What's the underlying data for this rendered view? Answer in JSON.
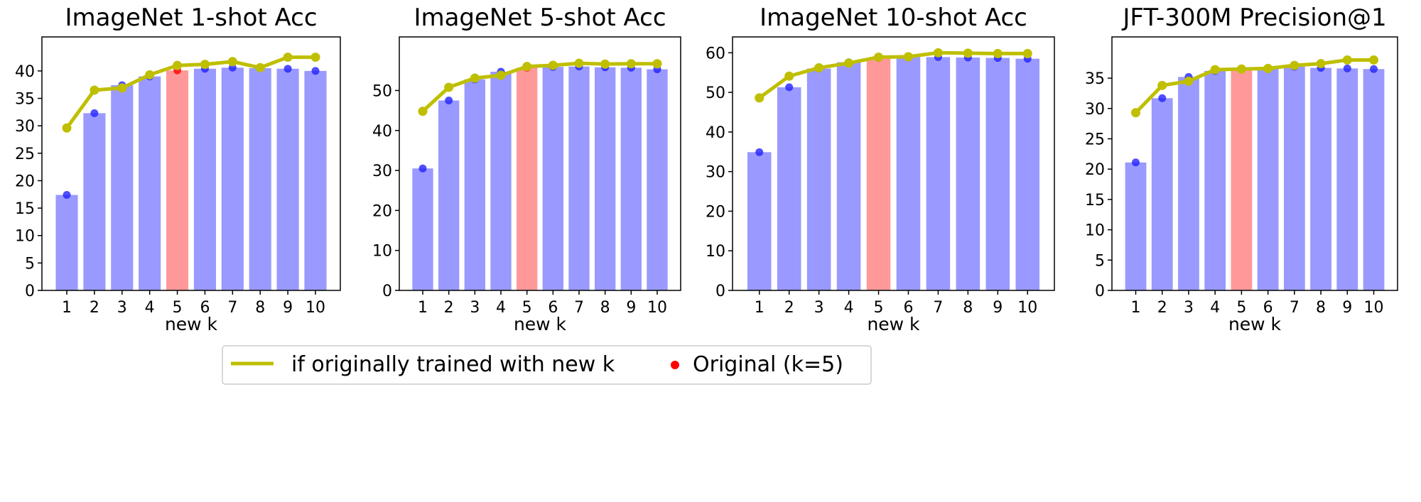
{
  "colors": {
    "bar": "#9999ff",
    "highlight_bar": "#ff9999",
    "dot": "#2222ff",
    "original_dot": "#ff0000",
    "line": "#bfbf00"
  },
  "legend": {
    "position": "bottom-center",
    "items": [
      {
        "label": "if originally trained with new k",
        "kind": "line"
      },
      {
        "label": "Original (k=5)",
        "kind": "dot"
      }
    ]
  },
  "chart_data": [
    {
      "type": "bar",
      "title": "ImageNet 1-shot Acc",
      "xlabel": "new k",
      "categories": [
        "1",
        "2",
        "3",
        "4",
        "5",
        "6",
        "7",
        "8",
        "9",
        "10"
      ],
      "highlight_index": 4,
      "ylim": [
        0,
        46.2
      ],
      "yticks": [
        0,
        5,
        10,
        15,
        20,
        25,
        30,
        35,
        40
      ],
      "grid": false,
      "series": [
        {
          "kind": "bar",
          "values": [
            17.4,
            32.3,
            37.4,
            39.0,
            40.1,
            40.4,
            40.6,
            40.5,
            40.4,
            40.0
          ]
        },
        {
          "kind": "line",
          "name": "if originally trained with new k",
          "values": [
            29.6,
            36.5,
            36.9,
            39.3,
            41.0,
            41.2,
            41.7,
            40.6,
            42.5,
            42.5
          ]
        }
      ]
    },
    {
      "type": "bar",
      "title": "ImageNet 5-shot Acc",
      "xlabel": "new k",
      "categories": [
        "1",
        "2",
        "3",
        "4",
        "5",
        "6",
        "7",
        "8",
        "9",
        "10"
      ],
      "highlight_index": 4,
      "ylim": [
        0,
        63.4
      ],
      "yticks": [
        0,
        10,
        20,
        30,
        40,
        50
      ],
      "grid": false,
      "series": [
        {
          "kind": "bar",
          "values": [
            30.5,
            47.5,
            52.8,
            54.7,
            55.7,
            55.9,
            56.0,
            55.8,
            55.7,
            55.3
          ]
        },
        {
          "kind": "line",
          "name": "if originally trained with new k",
          "values": [
            44.8,
            50.8,
            53.1,
            53.8,
            56.0,
            56.3,
            56.8,
            56.6,
            56.7,
            56.7
          ]
        }
      ]
    },
    {
      "type": "bar",
      "title": "ImageNet 10-shot Acc",
      "xlabel": "new k",
      "categories": [
        "1",
        "2",
        "3",
        "4",
        "5",
        "6",
        "7",
        "8",
        "9",
        "10"
      ],
      "highlight_index": 4,
      "ylim": [
        0,
        64.0
      ],
      "yticks": [
        0,
        10,
        20,
        30,
        40,
        50,
        60
      ],
      "grid": false,
      "series": [
        {
          "kind": "bar",
          "values": [
            34.9,
            51.3,
            56.0,
            57.6,
            58.7,
            58.9,
            58.9,
            58.8,
            58.7,
            58.5
          ]
        },
        {
          "kind": "line",
          "name": "if originally trained with new k",
          "values": [
            48.6,
            54.1,
            56.2,
            57.4,
            58.9,
            59.0,
            60.0,
            59.9,
            59.8,
            59.8
          ]
        }
      ]
    },
    {
      "type": "bar",
      "title": "JFT-300M Precision@1",
      "xlabel": "new k",
      "categories": [
        "1",
        "2",
        "3",
        "4",
        "5",
        "6",
        "7",
        "8",
        "9",
        "10"
      ],
      "highlight_index": 4,
      "ylim": [
        0,
        41.8
      ],
      "yticks": [
        0,
        5,
        10,
        15,
        20,
        25,
        30,
        35
      ],
      "grid": false,
      "series": [
        {
          "kind": "bar",
          "values": [
            21.1,
            31.7,
            35.2,
            36.2,
            36.5,
            36.6,
            36.9,
            36.7,
            36.6,
            36.5
          ]
        },
        {
          "kind": "line",
          "name": "if originally trained with new k",
          "values": [
            29.3,
            33.8,
            34.5,
            36.4,
            36.5,
            36.6,
            37.1,
            37.4,
            38.0,
            38.0
          ]
        }
      ]
    }
  ]
}
